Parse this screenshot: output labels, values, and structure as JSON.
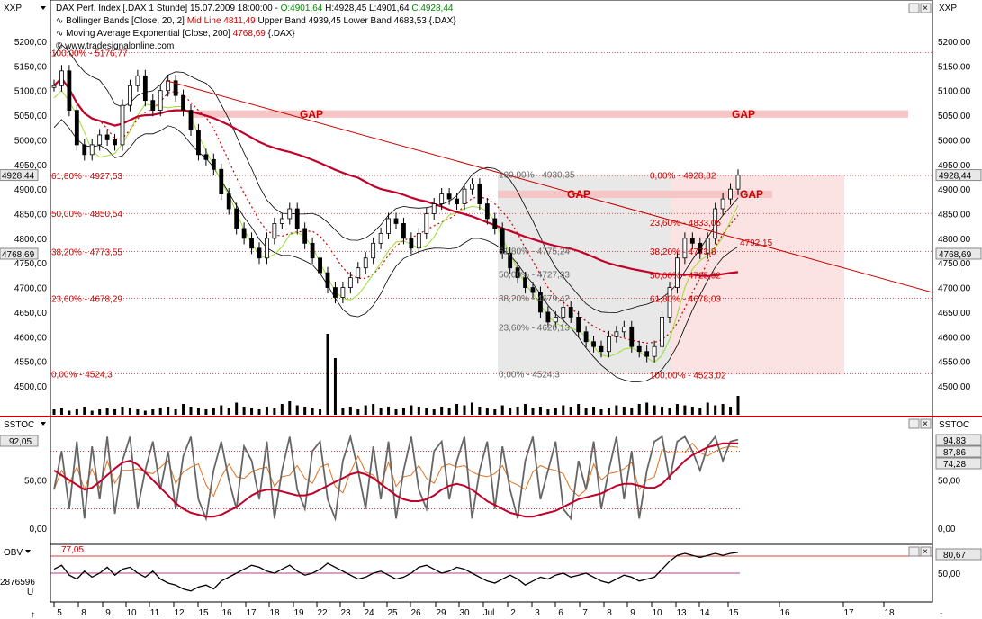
{
  "header": {
    "symbol_left": "XXP",
    "symbol_right": "XXP",
    "line1_a": "DAX Perf. Index [.DAX  1 Stunde] 15.07.2009 18:00:00 - ",
    "line1_o": "O:4901,64",
    "line1_h": " H:4928,45 L:4901,64 ",
    "line1_c": "C:4928,44",
    "line2_a": "Bollinger Bands [Close, 20, 2] ",
    "line2_mid": "Mid Line 4811,49",
    "line2_b": " Upper Band 4939,45 Lower Band 4683,53 {.DAX}",
    "line3_a": "Moving Average Exponential [Close, 200] ",
    "line3_val": "4768,69",
    "line3_b": " {.DAX}",
    "copyright": "© www.tradesignalonline.com"
  },
  "colors": {
    "up": "#000000",
    "bb": "#000000",
    "bbmid": "#cc0000",
    "ema": "#c0002a",
    "green": "#99dd33",
    "trend": "#cc0000",
    "fib": "#cc0000",
    "gapfill": "#f6c5c5",
    "box_gray": "#e8e8e8",
    "box_pink": "#fbe3e3"
  },
  "chart_data": [
    {
      "type": "line",
      "panel": "price",
      "title": "DAX Perf. Index [.DAX  1 Stunde]",
      "ylim": [
        4480,
        5240
      ],
      "yticks": [
        "5200,00",
        "5150,00",
        "5100,00",
        "5050,00",
        "5000,00",
        "4950,00",
        "4900,00",
        "4850,00",
        "4800,00",
        "4750,00",
        "4700,00",
        "4650,00",
        "4600,00",
        "4550,00",
        "4500,00"
      ],
      "last_price_label": "4928,44",
      "ema_label": "4768,69",
      "close": [
        5110,
        5140,
        5060,
        4990,
        4970,
        4990,
        5010,
        5000,
        4990,
        5070,
        5110,
        5130,
        5080,
        5060,
        5100,
        5120,
        5090,
        5060,
        5020,
        4970,
        4960,
        4940,
        4890,
        4860,
        4820,
        4800,
        4780,
        4760,
        4800,
        4830,
        4840,
        4860,
        4820,
        4790,
        4760,
        4730,
        4700,
        4680,
        4700,
        4720,
        4740,
        4760,
        4790,
        4810,
        4840,
        4830,
        4800,
        4780,
        4810,
        4850,
        4870,
        4890,
        4880,
        4870,
        4900,
        4910,
        4870,
        4840,
        4820,
        4770,
        4740,
        4720,
        4700,
        4690,
        4650,
        4630,
        4640,
        4660,
        4640,
        4610,
        4590,
        4580,
        4570,
        4600,
        4610,
        4620,
        4580,
        4570,
        4560,
        4580,
        4640,
        4700,
        4760,
        4800,
        4790,
        4770,
        4800,
        4860,
        4880,
        4900,
        4928
      ],
      "volume": [
        4,
        5,
        3,
        4,
        6,
        3,
        4,
        5,
        4,
        6,
        5,
        4,
        3,
        4,
        5,
        6,
        4,
        8,
        6,
        5,
        4,
        5,
        7,
        5,
        9,
        6,
        5,
        4,
        6,
        5,
        8,
        10,
        7,
        6,
        5,
        4,
        60,
        42,
        5,
        6,
        4,
        7,
        8,
        5,
        6,
        4,
        5,
        7,
        6,
        5,
        4,
        6,
        5,
        8,
        7,
        9,
        6,
        5,
        4,
        7,
        5,
        6,
        8,
        5,
        6,
        4,
        5,
        7,
        6,
        8,
        5,
        6,
        4,
        5,
        7,
        6,
        5,
        8,
        9,
        7,
        6,
        5,
        8,
        7,
        6,
        5,
        9,
        7,
        8,
        6,
        14
      ],
      "fib_left": [
        {
          "label": "100,00% - 5176,77",
          "price": 5176.77
        },
        {
          "label": "61,80% - 4927,53",
          "price": 4927.53
        },
        {
          "label": "50,00% - 4850,54",
          "price": 4850.54
        },
        {
          "label": "38,20% - 4773,55",
          "price": 4773.55
        },
        {
          "label": "23,60% - 4678,29",
          "price": 4678.29
        },
        {
          "label": "0,00% - 4524,3",
          "price": 4524.3
        }
      ],
      "fib_gray": [
        {
          "label": "100,00% - 4930,35",
          "price": 4930.35
        },
        {
          "label": "61,80% - 4775,24",
          "price": 4775.24
        },
        {
          "label": "50,00% - 4727,33",
          "price": 4727.33
        },
        {
          "label": "38,20% - 4679,42",
          "price": 4679.42
        },
        {
          "label": "23,60% - 4620,13",
          "price": 4620.13
        },
        {
          "label": "0,00% - 4524,3",
          "price": 4524.3
        }
      ],
      "fib_pink": [
        {
          "label": "0,00% - 4928,82",
          "price": 4928.82
        },
        {
          "label": "23,60% - 4833,05",
          "price": 4833.05
        },
        {
          "label": "38,20% - 4773,8",
          "price": 4773.8
        },
        {
          "label": "50,00% - 4725,92",
          "price": 4725.92
        },
        {
          "label": "61,80% - 4678,03",
          "price": 4678.03
        },
        {
          "label": "100,00% - 4523,02",
          "price": 4523.02
        }
      ],
      "target_label": "4792,15",
      "gap_labels": [
        "GAP",
        "GAP",
        "GAP",
        "GAP"
      ]
    },
    {
      "type": "line",
      "panel": "stochastic",
      "title": "SSTOC",
      "ylim": [
        -5,
        100
      ],
      "yticks": [
        "50,00",
        "0,00"
      ],
      "left_badge": "92,05",
      "right_labels": [
        "94,83",
        "87,86",
        "74,28"
      ],
      "k": [
        40,
        80,
        20,
        90,
        10,
        85,
        30,
        95,
        15,
        70,
        95,
        20,
        60,
        90,
        40,
        80,
        20,
        75,
        95,
        30,
        10,
        60,
        90,
        50,
        20,
        85,
        70,
        30,
        90,
        10,
        60,
        95,
        40,
        20,
        80,
        90,
        30,
        10,
        70,
        95,
        60,
        20,
        85,
        30,
        90,
        10,
        60,
        95,
        40,
        20,
        80,
        90,
        30,
        70,
        95,
        10,
        60,
        90,
        20,
        85,
        40,
        10,
        70,
        95,
        30,
        60,
        90,
        20,
        10,
        70,
        40,
        90,
        20,
        60,
        95,
        30,
        80,
        10,
        60,
        90,
        95,
        50,
        90,
        95,
        80,
        60,
        85,
        95,
        70,
        90,
        92
      ],
      "slow": [
        60,
        55,
        50,
        45,
        40,
        42,
        48,
        55,
        62,
        68,
        70,
        66,
        58,
        50,
        42,
        34,
        26,
        20,
        16,
        14,
        12,
        12,
        14,
        18,
        22,
        28,
        34,
        38,
        40,
        40,
        38,
        36,
        34,
        34,
        36,
        40,
        44,
        48,
        52,
        56,
        58,
        56,
        52,
        46,
        40,
        34,
        30,
        28,
        28,
        30,
        34,
        40,
        44,
        46,
        44,
        40,
        34,
        28,
        24,
        20,
        16,
        14,
        12,
        12,
        14,
        16,
        18,
        22,
        26,
        30,
        32,
        34,
        36,
        40,
        44,
        46,
        46,
        44,
        42,
        42,
        46,
        54,
        62,
        70,
        76,
        80,
        84,
        86,
        88,
        88,
        88
      ]
    },
    {
      "type": "line",
      "panel": "obv",
      "title": "OBV",
      "ylim": [
        -1.2,
        1.2
      ],
      "yticks": [
        "50,00"
      ],
      "left_label": "77,05",
      "left_value": "2876596",
      "left_unit": "U",
      "right_label": "80,67",
      "values": [
        0.2,
        0.4,
        -0.1,
        -0.3,
        0.1,
        -0.2,
        0.0,
        0.3,
        -0.1,
        0.2,
        0.3,
        0.0,
        -0.2,
        0.1,
        -0.3,
        -0.5,
        -0.6,
        -0.8,
        -0.9,
        -0.7,
        -0.6,
        -0.8,
        -0.4,
        -0.2,
        0.0,
        0.2,
        0.4,
        0.3,
        0.1,
        0.0,
        0.2,
        0.4,
        0.1,
        -0.1,
        0.0,
        0.2,
        0.5,
        0.3,
        0.1,
        -0.1,
        -0.3,
        -0.2,
        0.0,
        0.1,
        -0.1,
        -0.3,
        -0.2,
        0.0,
        0.3,
        0.4,
        0.2,
        0.0,
        0.1,
        0.3,
        0.2,
        0.0,
        -0.2,
        -0.4,
        -0.5,
        -0.3,
        -0.1,
        -0.3,
        -0.6,
        -0.4,
        -0.2,
        -0.3,
        -0.1,
        0.0,
        -0.2,
        -0.1,
        0.0,
        -0.2,
        -0.4,
        -0.5,
        -0.3,
        -0.1,
        -0.2,
        -0.4,
        -0.3,
        -0.2,
        0.2,
        0.6,
        0.9,
        1.0,
        0.9,
        0.8,
        0.9,
        1.0,
        0.9,
        1.0,
        1.05
      ]
    }
  ],
  "x_axis": {
    "labels": [
      "5",
      "8",
      "9",
      "10",
      "11",
      "12",
      "15",
      "16",
      "17",
      "18",
      "19",
      "22",
      "23",
      "24",
      "25",
      "26",
      "29",
      "30",
      "Jul",
      "2",
      "3",
      "6",
      "7",
      "8",
      "9",
      "10",
      "13",
      "14",
      "15",
      "16",
      "17",
      "18"
    ]
  }
}
